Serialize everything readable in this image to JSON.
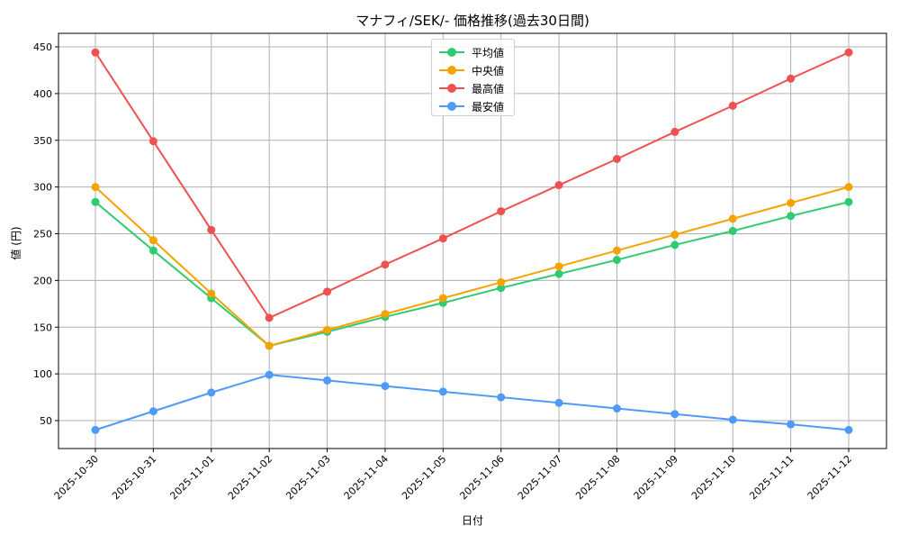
{
  "chart_data": {
    "type": "line",
    "title": "マナフィ/SEK/- 価格推移(過去30日間)",
    "xlabel": "日付",
    "ylabel": "値 (円)",
    "ylim": [
      20,
      465
    ],
    "yticks": [
      50,
      100,
      150,
      200,
      250,
      300,
      350,
      400,
      450
    ],
    "grid": true,
    "legend_position": "upper center",
    "categories": [
      "2025-10-30",
      "2025-10-31",
      "2025-11-01",
      "2025-11-02",
      "2025-11-03",
      "2025-11-04",
      "2025-11-05",
      "2025-11-06",
      "2025-11-07",
      "2025-11-08",
      "2025-11-09",
      "2025-11-10",
      "2025-11-11",
      "2025-11-12"
    ],
    "series": [
      {
        "name": "平均値",
        "color": "#2ecc71",
        "values": [
          284,
          232,
          181,
          130,
          145,
          161,
          176,
          192,
          207,
          222,
          238,
          253,
          269,
          284
        ]
      },
      {
        "name": "中央値",
        "color": "#f5a300",
        "values": [
          300,
          243,
          186,
          130,
          147,
          164,
          181,
          198,
          215,
          232,
          249,
          266,
          283,
          300
        ]
      },
      {
        "name": "最高値",
        "color": "#f05050",
        "values": [
          444,
          349,
          254,
          160,
          188,
          217,
          245,
          274,
          302,
          330,
          359,
          387,
          416,
          444
        ]
      },
      {
        "name": "最安値",
        "color": "#4d9bf7",
        "values": [
          40,
          60,
          80,
          99,
          93,
          87,
          81,
          75,
          69,
          63,
          57,
          51,
          46,
          40
        ]
      }
    ]
  }
}
